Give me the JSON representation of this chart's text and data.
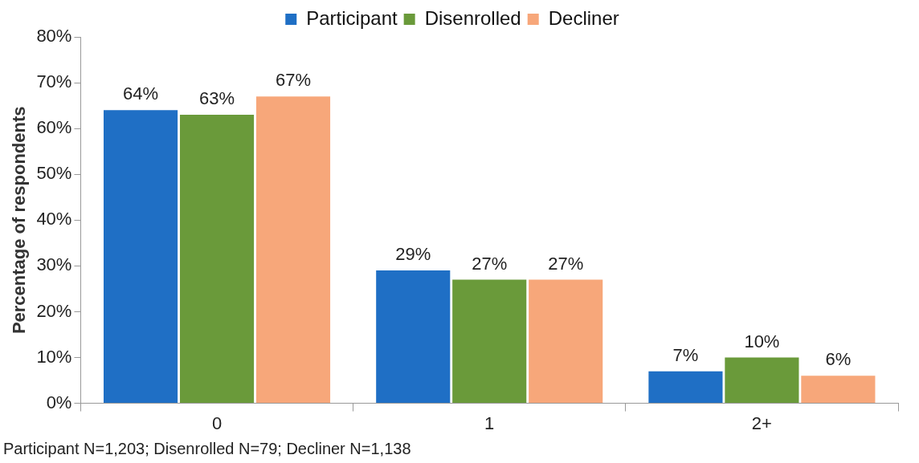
{
  "chart_data": {
    "type": "bar",
    "ylabel": "Percentage of respondents",
    "categories": [
      "0",
      "1",
      "2+"
    ],
    "series": [
      {
        "name": "Participant",
        "color": "#1f6fc5",
        "values": [
          64,
          29,
          7
        ],
        "value_labels": [
          "64%",
          "29%",
          "7%"
        ]
      },
      {
        "name": "Disenrolled",
        "color": "#6a9a3a",
        "values": [
          63,
          27,
          10
        ],
        "value_labels": [
          "63%",
          "27%",
          "10%"
        ]
      },
      {
        "name": "Decliner",
        "color": "#f7a77a",
        "values": [
          67,
          27,
          6
        ],
        "value_labels": [
          "67%",
          "27%",
          "6%"
        ]
      }
    ],
    "ylim": [
      0,
      80
    ],
    "yticks": [
      {
        "value": 0,
        "label": "0%"
      },
      {
        "value": 10,
        "label": "10%"
      },
      {
        "value": 20,
        "label": "20%"
      },
      {
        "value": 30,
        "label": "30%"
      },
      {
        "value": 40,
        "label": "40%"
      },
      {
        "value": 50,
        "label": "50%"
      },
      {
        "value": 60,
        "label": "60%"
      },
      {
        "value": 70,
        "label": "70%"
      },
      {
        "value": 80,
        "label": "80%"
      }
    ],
    "grid": false,
    "legend": "top",
    "annotations": [
      "Participant N=1,203; Disenrolled N=79; Decliner N=1,138"
    ]
  }
}
